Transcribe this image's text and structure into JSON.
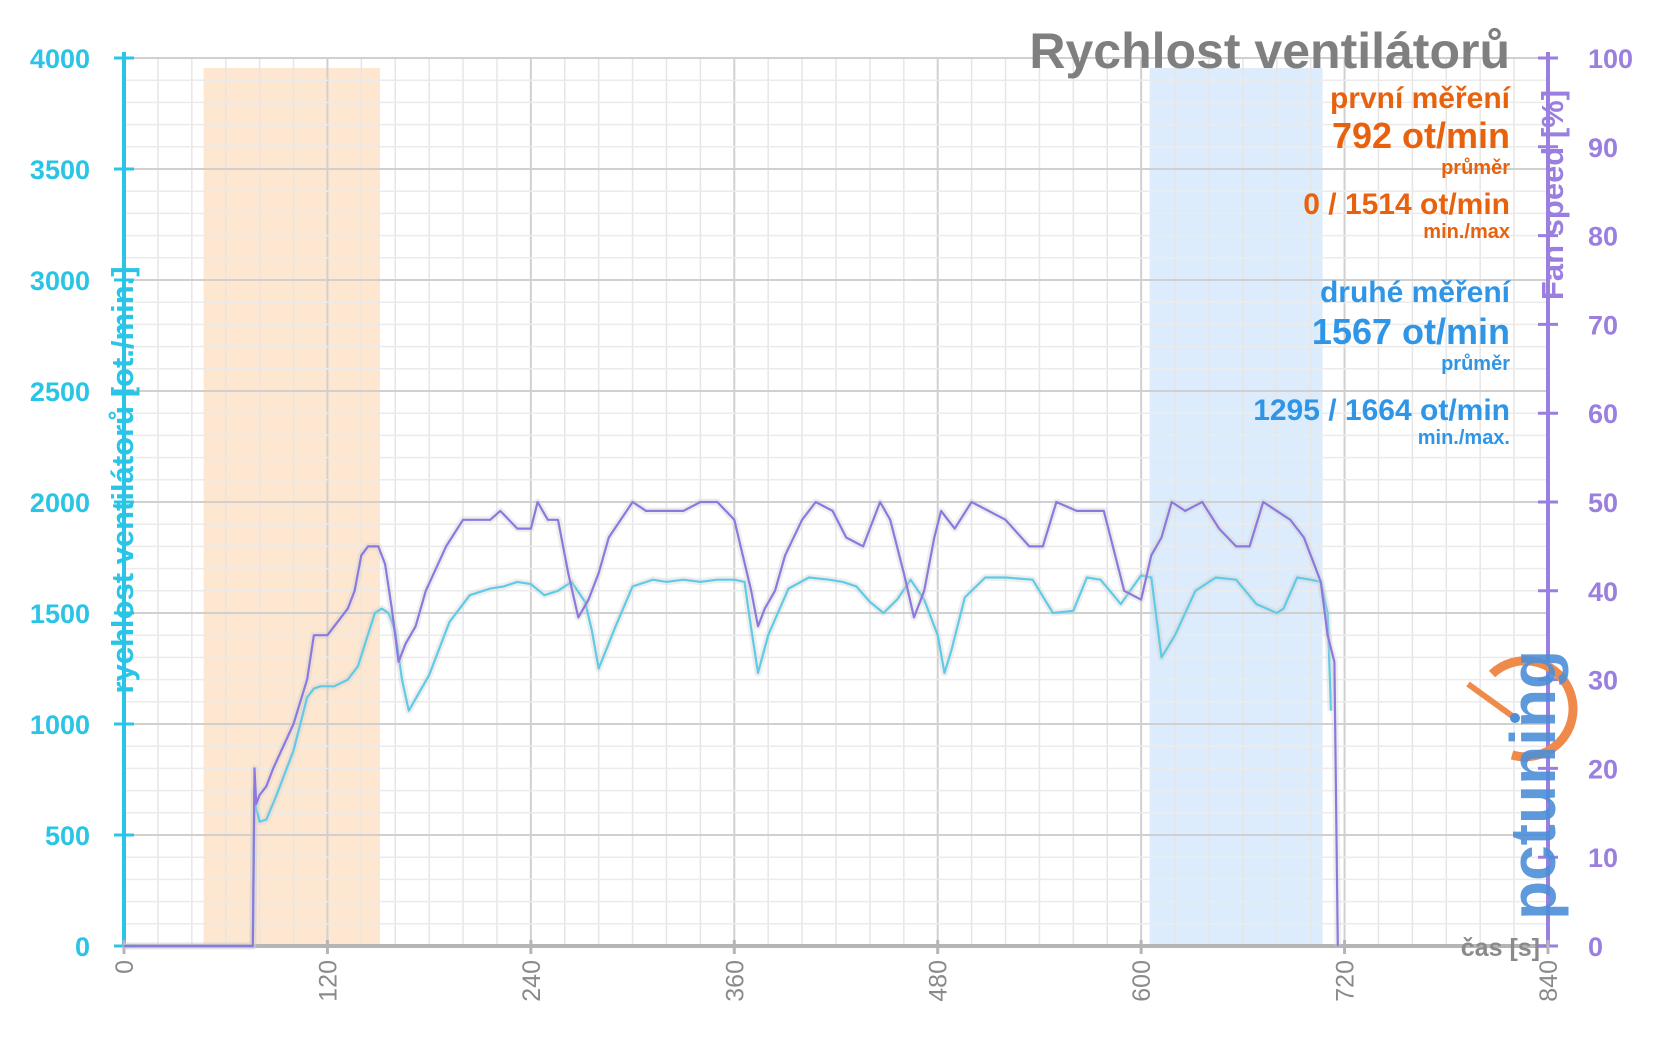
{
  "chart_data": {
    "type": "line",
    "title": "Rychlost ventilátorů",
    "xlabel": "čas [s]",
    "ylabel_left": "rychlost ventilátorů [ot./min.]",
    "ylabel_right": "Fan speed [%]",
    "xlim": [
      0,
      840
    ],
    "ylim_left": [
      0,
      4000
    ],
    "ylim_right": [
      0,
      100
    ],
    "x_ticks": [
      "0",
      "120",
      "240",
      "360",
      "480",
      "600",
      "720",
      "840"
    ],
    "y_ticks_left": [
      "0",
      "500",
      "1000",
      "1500",
      "2000",
      "2500",
      "3000",
      "3500",
      "4000"
    ],
    "y_ticks_right": [
      "0",
      "10",
      "20",
      "30",
      "40",
      "50",
      "60",
      "70",
      "80",
      "90",
      "100"
    ],
    "grid": true,
    "highlight_ranges": [
      {
        "from": 47,
        "to": 151,
        "color": "#fde3c8"
      },
      {
        "from": 605,
        "to": 707,
        "color": "#d6e9fc"
      }
    ],
    "series": [
      {
        "axis": "left",
        "color": "#5fcbe6",
        "x": [
          0,
          76,
          77,
          78,
          80,
          84,
          90,
          100,
          108,
          112,
          116,
          124,
          132,
          138,
          143,
          148,
          152,
          156,
          160,
          164,
          168,
          180,
          192,
          204,
          216,
          224,
          232,
          240,
          248,
          256,
          264,
          272,
          276,
          280,
          290,
          300,
          312,
          320,
          330,
          340,
          350,
          360,
          366,
          370,
          374,
          380,
          392,
          404,
          416,
          424,
          432,
          440,
          448,
          456,
          464,
          472,
          480,
          484,
          488,
          496,
          508,
          520,
          536,
          548,
          560,
          568,
          576,
          588,
          600,
          606,
          612,
          620,
          632,
          644,
          656,
          668,
          680,
          684,
          692,
          700,
          706,
          710,
          712
        ],
        "y": [
          0,
          0,
          700,
          620,
          560,
          570,
          680,
          880,
          1120,
          1160,
          1170,
          1170,
          1200,
          1260,
          1380,
          1500,
          1520,
          1500,
          1420,
          1200,
          1060,
          1220,
          1460,
          1580,
          1610,
          1620,
          1640,
          1630,
          1580,
          1600,
          1640,
          1550,
          1420,
          1250,
          1440,
          1620,
          1650,
          1640,
          1650,
          1640,
          1650,
          1650,
          1640,
          1430,
          1230,
          1400,
          1610,
          1660,
          1650,
          1640,
          1620,
          1550,
          1500,
          1560,
          1650,
          1560,
          1400,
          1230,
          1330,
          1570,
          1660,
          1660,
          1650,
          1500,
          1510,
          1660,
          1650,
          1540,
          1670,
          1660,
          1300,
          1400,
          1600,
          1660,
          1650,
          1540,
          1500,
          1520,
          1660,
          1650,
          1640,
          1500,
          1060
        ]
      },
      {
        "axis": "right",
        "color": "#8c79df",
        "x": [
          0,
          76,
          77,
          78,
          80,
          84,
          88,
          100,
          108,
          112,
          120,
          124,
          132,
          136,
          140,
          144,
          150,
          154,
          158,
          162,
          166,
          172,
          178,
          190,
          200,
          210,
          216,
          222,
          232,
          240,
          244,
          250,
          256,
          262,
          268,
          274,
          280,
          286,
          300,
          308,
          316,
          330,
          340,
          350,
          360,
          370,
          374,
          378,
          384,
          390,
          400,
          408,
          418,
          426,
          436,
          446,
          452,
          460,
          466,
          472,
          478,
          482,
          486,
          490,
          500,
          510,
          520,
          534,
          542,
          550,
          562,
          570,
          578,
          590,
          600,
          606,
          612,
          618,
          626,
          636,
          646,
          656,
          664,
          672,
          680,
          688,
          696,
          702,
          706,
          710,
          714,
          716
        ],
        "y": [
          0,
          0,
          20,
          16,
          17,
          18,
          20,
          25,
          30,
          35,
          35,
          36,
          38,
          40,
          44,
          45,
          45,
          43,
          38,
          32,
          34,
          36,
          40,
          45,
          48,
          48,
          48,
          49,
          47,
          47,
          50,
          48,
          48,
          42,
          37,
          39,
          42,
          46,
          50,
          49,
          49,
          49,
          50,
          50,
          48,
          40,
          36,
          38,
          40,
          44,
          48,
          50,
          49,
          46,
          45,
          50,
          48,
          42,
          37,
          40,
          46,
          49,
          48,
          47,
          50,
          49,
          48,
          45,
          45,
          50,
          49,
          49,
          49,
          40,
          39,
          44,
          46,
          50,
          49,
          50,
          47,
          45,
          45,
          50,
          49,
          48,
          46,
          43,
          41,
          35,
          32,
          0
        ]
      }
    ],
    "annotations": {
      "first_heading": "první měření",
      "first_avg": "792 ot/min",
      "first_avg_label": "průměr",
      "first_minmax": "0 / 1514 ot/min",
      "first_minmax_label": "min./max",
      "second_heading": "druhé měření",
      "second_avg": "1567 ot/min",
      "second_avg_label": "průměr",
      "second_minmax": "1295 / 1664 ot/min",
      "second_minmax_label": "min./max."
    }
  },
  "logo": {
    "text": "pctuning",
    "colors": {
      "orange": "#f08a4b",
      "blue": "#4c8fd8"
    }
  }
}
